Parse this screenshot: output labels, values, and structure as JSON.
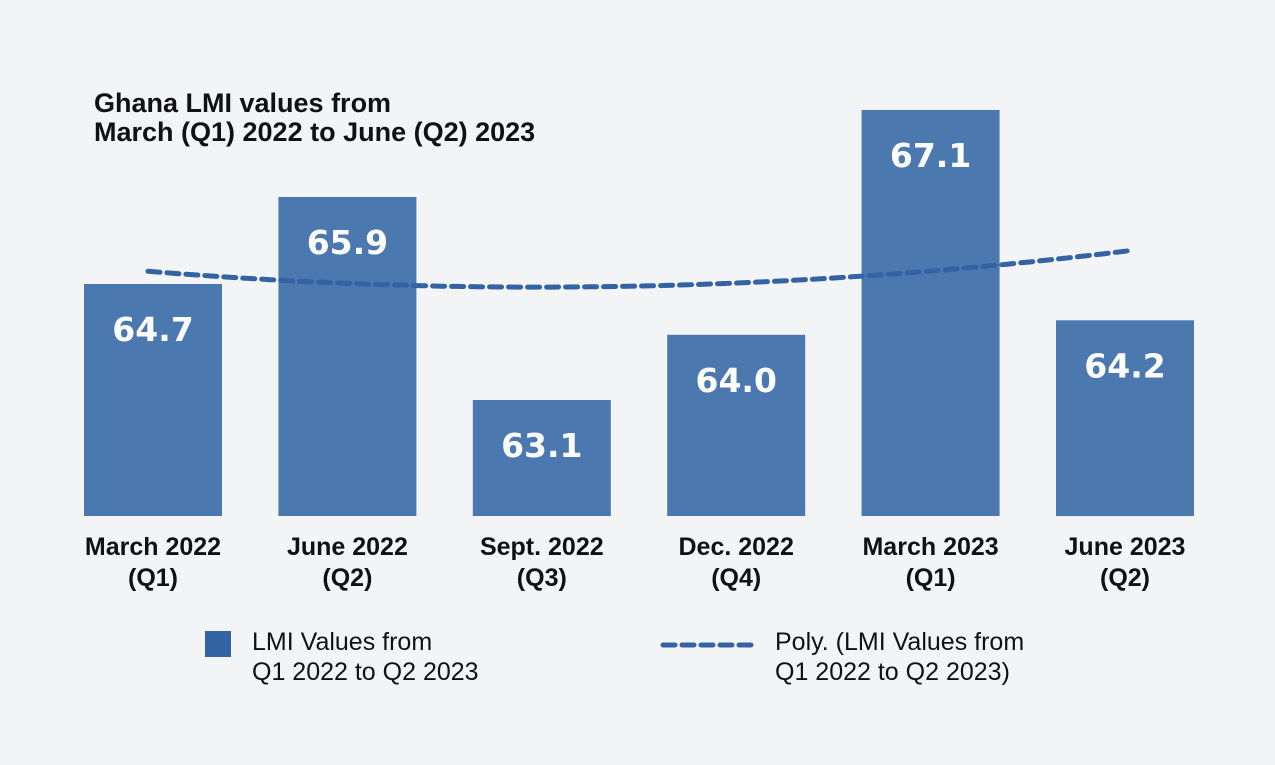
{
  "chart_data": {
    "type": "bar",
    "title": [
      "Ghana LMI values from",
      "March (Q1) 2022 to June (Q2) 2023"
    ],
    "categories": [
      [
        "March 2022",
        "(Q1)"
      ],
      [
        "June 2022",
        "(Q2)"
      ],
      [
        "Sept. 2022",
        "(Q3)"
      ],
      [
        "Dec. 2022",
        "(Q4)"
      ],
      [
        "March 2023",
        "(Q1)"
      ],
      [
        "June 2023",
        "(Q2)"
      ]
    ],
    "series": [
      {
        "name": [
          "LMI Values from",
          "Q1 2022 to Q2 2023"
        ],
        "values": [
          64.7,
          65.9,
          63.1,
          64.0,
          67.1,
          64.2
        ],
        "labels": [
          "64.7",
          "65.9",
          "63.1",
          "64.0",
          "67.1",
          "64.2"
        ],
        "color": "#4c78b0"
      }
    ],
    "trendline": {
      "type": "polynomial",
      "name": [
        "Poly. (LMI Values from",
        "Q1 2022 to Q2 2023)"
      ],
      "color": "#3363a3",
      "style": "dashed"
    },
    "ylim": [
      61.5,
      67.9
    ],
    "grid": false,
    "legend": "bottom"
  }
}
